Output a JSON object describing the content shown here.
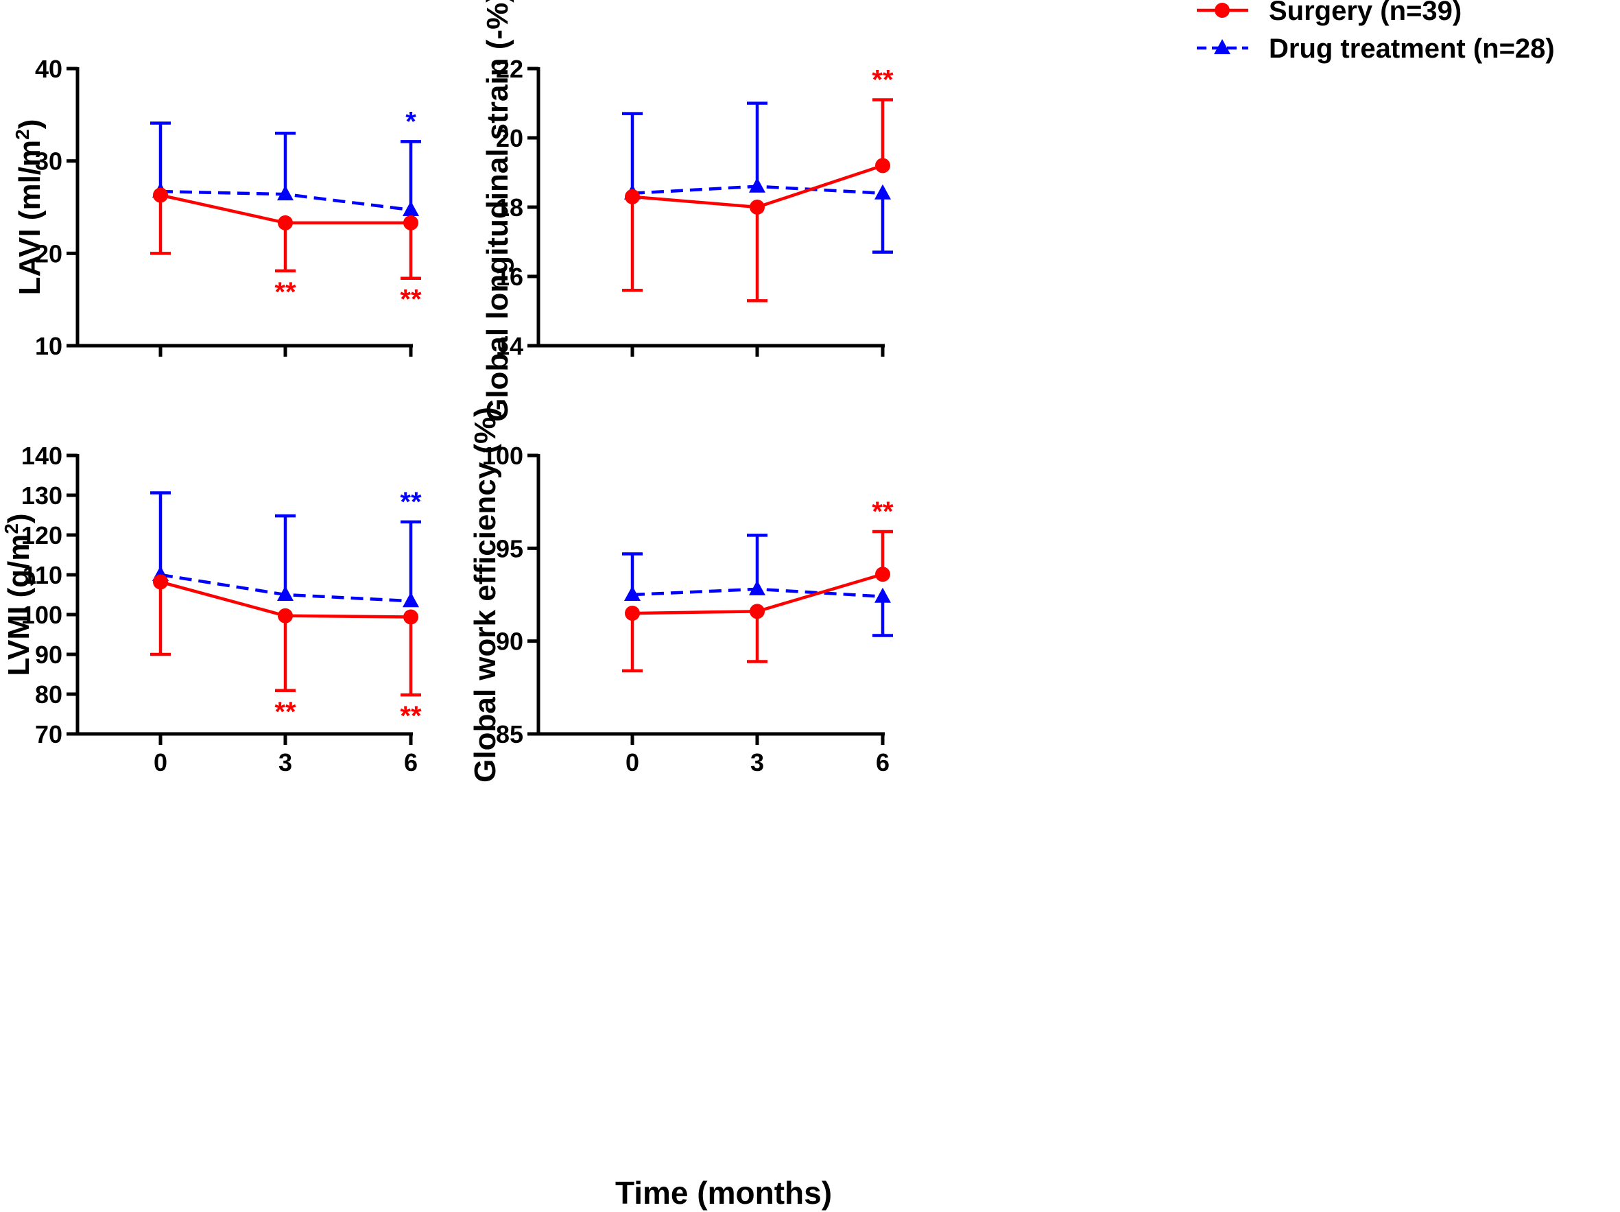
{
  "figure": {
    "xlabel": "Time (months)",
    "colors": {
      "surgery": "#ff0000",
      "drug": "#0000ff",
      "axis": "#000000"
    },
    "legend": [
      {
        "label": "Surgery (n=39)",
        "series": "surgery",
        "marker": "circle",
        "dashed": false
      },
      {
        "label": "Drug treatment (n=28)",
        "series": "drug",
        "marker": "triangle",
        "dashed": true
      }
    ]
  },
  "chart_data": [
    {
      "type": "line",
      "title": "",
      "ylabel": "LAVI (ml/m²)",
      "ylabel_main": "LAVI (ml/m",
      "ylabel_sup": "2",
      "ylabel_tail": ")",
      "x": [
        0,
        3,
        6
      ],
      "x_ticks": [
        "0",
        "3",
        "6"
      ],
      "show_x_tick_labels": false,
      "ylim": [
        10,
        40
      ],
      "y_ticks": [
        10,
        20,
        30,
        40
      ],
      "series": [
        {
          "name": "Surgery (n=39)",
          "key": "surgery",
          "values": [
            26.3,
            23.3,
            23.3
          ],
          "errors": [
            [
              20.0,
              null
            ],
            [
              18.1,
              null
            ],
            [
              17.3,
              null
            ]
          ],
          "significance": [
            "",
            "**",
            "**"
          ]
        },
        {
          "name": "Drug treatment (n=28)",
          "key": "drug",
          "values": [
            26.7,
            26.4,
            24.7
          ],
          "errors": [
            [
              null,
              34.1
            ],
            [
              null,
              33.0
            ],
            [
              null,
              32.1
            ]
          ],
          "significance": [
            "",
            "",
            "*"
          ]
        }
      ]
    },
    {
      "type": "line",
      "title": "",
      "ylabel": "Global longitudinal strain (-%)",
      "ylabel_main": "Global longitudinal strain (-%)",
      "ylabel_sup": "",
      "ylabel_tail": "",
      "x": [
        0,
        3,
        6
      ],
      "x_ticks": [
        "0",
        "3",
        "6"
      ],
      "show_x_tick_labels": false,
      "ylim": [
        14,
        22
      ],
      "y_ticks": [
        14,
        16,
        18,
        20,
        22
      ],
      "series": [
        {
          "name": "Surgery (n=39)",
          "key": "surgery",
          "values": [
            18.3,
            18.0,
            19.2
          ],
          "errors": [
            [
              15.6,
              null
            ],
            [
              15.3,
              null
            ],
            [
              null,
              21.1
            ]
          ],
          "significance": [
            "",
            "",
            "**"
          ]
        },
        {
          "name": "Drug treatment (n=28)",
          "key": "drug",
          "values": [
            18.4,
            18.6,
            18.4
          ],
          "errors": [
            [
              null,
              20.7
            ],
            [
              null,
              21.0
            ],
            [
              16.7,
              null
            ]
          ],
          "significance": [
            "",
            "",
            ""
          ]
        }
      ]
    },
    {
      "type": "line",
      "title": "",
      "ylabel": "LVMI (g/m²)",
      "ylabel_main": "LVMI (g/m",
      "ylabel_sup": "2",
      "ylabel_tail": ")",
      "x": [
        0,
        3,
        6
      ],
      "x_ticks": [
        "0",
        "3",
        "6"
      ],
      "show_x_tick_labels": true,
      "ylim": [
        70,
        140
      ],
      "y_ticks": [
        70,
        80,
        90,
        100,
        110,
        120,
        130,
        140
      ],
      "series": [
        {
          "name": "Surgery (n=39)",
          "key": "surgery",
          "values": [
            108.2,
            99.7,
            99.4
          ],
          "errors": [
            [
              90.0,
              null
            ],
            [
              80.9,
              null
            ],
            [
              79.8,
              null
            ]
          ],
          "significance": [
            "",
            "**",
            "**"
          ]
        },
        {
          "name": "Drug treatment (n=28)",
          "key": "drug",
          "values": [
            110.0,
            105.0,
            103.4
          ],
          "errors": [
            [
              null,
              130.6
            ],
            [
              null,
              124.8
            ],
            [
              null,
              123.3
            ]
          ],
          "significance": [
            "",
            "",
            "**"
          ]
        }
      ]
    },
    {
      "type": "line",
      "title": "",
      "ylabel": "Global work efficiency (%)",
      "ylabel_main": "Global work efficiency (%)",
      "ylabel_sup": "",
      "ylabel_tail": "",
      "x": [
        0,
        3,
        6
      ],
      "x_ticks": [
        "0",
        "3",
        "6"
      ],
      "show_x_tick_labels": true,
      "ylim": [
        85,
        100
      ],
      "y_ticks": [
        85,
        90,
        95,
        100
      ],
      "series": [
        {
          "name": "Surgery (n=39)",
          "key": "surgery",
          "values": [
            91.5,
            91.6,
            93.6
          ],
          "errors": [
            [
              88.4,
              null
            ],
            [
              88.9,
              null
            ],
            [
              null,
              95.9
            ]
          ],
          "significance": [
            "",
            "",
            "**"
          ]
        },
        {
          "name": "Drug treatment (n=28)",
          "key": "drug",
          "values": [
            92.5,
            92.8,
            92.4
          ],
          "errors": [
            [
              null,
              94.7
            ],
            [
              null,
              95.7
            ],
            [
              90.3,
              null
            ]
          ],
          "significance": [
            "",
            "",
            ""
          ]
        }
      ]
    }
  ]
}
